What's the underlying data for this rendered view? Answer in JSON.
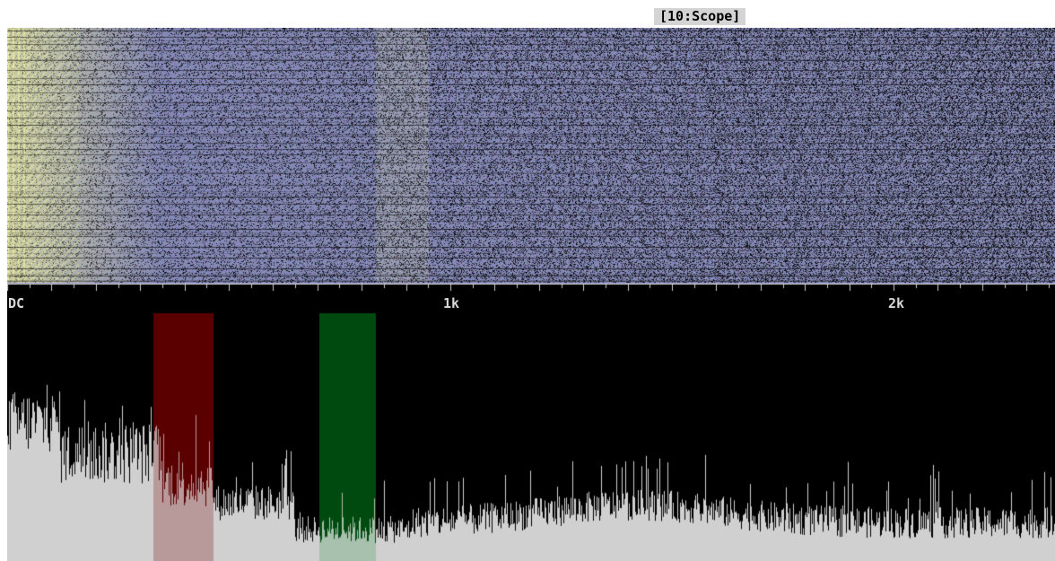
{
  "window": {
    "title": "[10:Scope]"
  },
  "axis": {
    "labels": [
      "DC",
      "1k",
      "2k"
    ]
  },
  "colors": {
    "background": "#ffffff",
    "scope_background": "#000000",
    "spectrum_fill": "#d0d0d0",
    "waterfall_base": "#7c7fa8",
    "waterfall_hot": "#e6e8a0",
    "passband_red": "#5a0000",
    "passband_green": "#004a10",
    "tick_color": "#cfcfcf",
    "label_color": "#d8d8d8"
  },
  "icons": {
    "waterfall": "waterfall-spectrogram",
    "spectrum": "fft-spectrum"
  }
}
